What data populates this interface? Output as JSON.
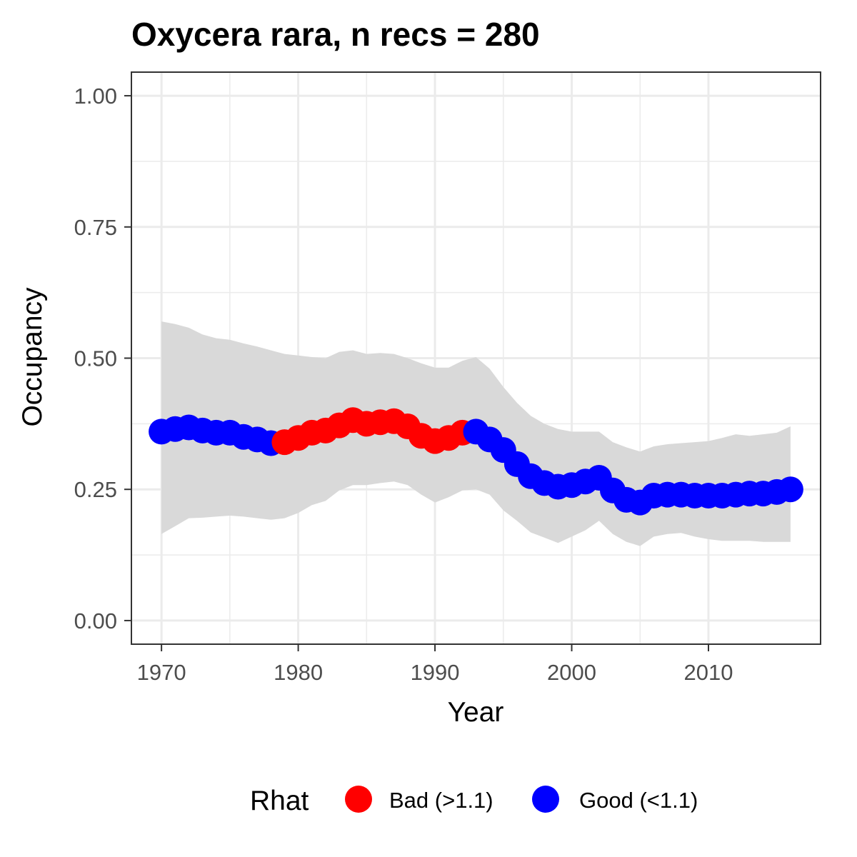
{
  "chart_data": {
    "type": "line",
    "title": "Oxycera rara, n recs = 280",
    "xlabel": "Year",
    "ylabel": "Occupancy",
    "xlim": [
      1967.8,
      2018.2
    ],
    "ylim": [
      -0.045,
      1.045
    ],
    "x_ticks": [
      1970,
      1980,
      1990,
      2000,
      2010
    ],
    "x_tick_labels": [
      "1970",
      "1980",
      "1990",
      "2000",
      "2010"
    ],
    "y_ticks": [
      0,
      0.25,
      0.5,
      0.75,
      1
    ],
    "y_tick_labels": [
      "0.00",
      "0.25",
      "0.50",
      "0.75",
      "1.00"
    ],
    "grid": true,
    "legend": {
      "title": "Rhat",
      "position": "bottom",
      "entries": [
        {
          "key": "bad",
          "label": "Bad (>1.1)",
          "color": "#ff0000"
        },
        {
          "key": "good",
          "label": "Good (<1.1)",
          "color": "#0000ff"
        }
      ]
    },
    "band_color": "#d9d9d9",
    "x": [
      1970,
      1971,
      1972,
      1973,
      1974,
      1975,
      1976,
      1977,
      1978,
      1979,
      1980,
      1981,
      1982,
      1983,
      1984,
      1985,
      1986,
      1987,
      1988,
      1989,
      1990,
      1991,
      1992,
      1993,
      1994,
      1995,
      1996,
      1997,
      1998,
      1999,
      2000,
      2001,
      2002,
      2003,
      2004,
      2005,
      2006,
      2007,
      2008,
      2009,
      2010,
      2011,
      2012,
      2013,
      2014,
      2015,
      2016
    ],
    "mean": [
      0.36,
      0.365,
      0.368,
      0.362,
      0.358,
      0.358,
      0.35,
      0.345,
      0.338,
      0.34,
      0.348,
      0.358,
      0.362,
      0.372,
      0.382,
      0.375,
      0.378,
      0.38,
      0.37,
      0.352,
      0.342,
      0.348,
      0.358,
      0.36,
      0.345,
      0.325,
      0.298,
      0.275,
      0.262,
      0.255,
      0.258,
      0.265,
      0.272,
      0.248,
      0.23,
      0.225,
      0.238,
      0.24,
      0.24,
      0.238,
      0.238,
      0.238,
      0.24,
      0.242,
      0.242,
      0.245,
      0.25
    ],
    "lower": [
      0.165,
      0.18,
      0.195,
      0.196,
      0.198,
      0.2,
      0.198,
      0.195,
      0.192,
      0.195,
      0.205,
      0.22,
      0.228,
      0.248,
      0.258,
      0.258,
      0.262,
      0.265,
      0.258,
      0.24,
      0.225,
      0.235,
      0.248,
      0.25,
      0.24,
      0.21,
      0.19,
      0.168,
      0.158,
      0.148,
      0.16,
      0.172,
      0.19,
      0.165,
      0.15,
      0.142,
      0.16,
      0.165,
      0.167,
      0.16,
      0.155,
      0.152,
      0.152,
      0.152,
      0.15,
      0.15,
      0.15
    ],
    "upper": [
      0.57,
      0.565,
      0.558,
      0.545,
      0.538,
      0.535,
      0.528,
      0.522,
      0.515,
      0.508,
      0.505,
      0.502,
      0.5,
      0.512,
      0.515,
      0.508,
      0.51,
      0.508,
      0.5,
      0.49,
      0.482,
      0.482,
      0.495,
      0.502,
      0.48,
      0.445,
      0.415,
      0.39,
      0.375,
      0.365,
      0.36,
      0.36,
      0.36,
      0.34,
      0.33,
      0.322,
      0.332,
      0.336,
      0.338,
      0.34,
      0.342,
      0.348,
      0.355,
      0.352,
      0.355,
      0.358,
      0.37
    ],
    "rhat_status": [
      "good",
      "good",
      "good",
      "good",
      "good",
      "good",
      "good",
      "good",
      "good",
      "bad",
      "bad",
      "bad",
      "bad",
      "bad",
      "bad",
      "bad",
      "bad",
      "bad",
      "bad",
      "bad",
      "bad",
      "bad",
      "bad",
      "good",
      "good",
      "good",
      "good",
      "good",
      "good",
      "good",
      "good",
      "good",
      "good",
      "good",
      "good",
      "good",
      "good",
      "good",
      "good",
      "good",
      "good",
      "good",
      "good",
      "good",
      "good",
      "good",
      "good"
    ]
  }
}
